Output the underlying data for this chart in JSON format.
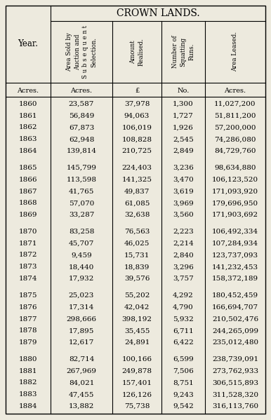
{
  "title": "CROWN LANDS.",
  "bg_color": "#edeade",
  "col_headers_line1": [
    "Area Sold by",
    "Amount",
    "Number of",
    "Area Leased."
  ],
  "col_headers_line2": [
    "Auction and",
    "Realised.",
    "Squatting",
    ""
  ],
  "col_headers_line3": [
    "Subsequent",
    "",
    "Runs.",
    ""
  ],
  "col_headers_line4": [
    "Selection.",
    "",
    "",
    ""
  ],
  "col_units": [
    "Acres.",
    "£",
    "No.",
    "Acres."
  ],
  "year_col_label": "Year.",
  "years": [
    "1860",
    "1861",
    "1862",
    "1863",
    "1864",
    "1865",
    "1866",
    "1867",
    "1868",
    "1869",
    "1870",
    "1871",
    "1872",
    "1873",
    "1874",
    "1875",
    "1876",
    "1877",
    "1878",
    "1879",
    "1880",
    "1881",
    "1882",
    "1883",
    "1884"
  ],
  "col1": [
    "23,587",
    "56,849",
    "67,873",
    "62,948",
    "139,814",
    "145,799",
    "113,598",
    "41,765",
    "57,070",
    "33,287",
    "83,258",
    "45,707",
    "9,459",
    "18,440",
    "17,932",
    "25,023",
    "17,314",
    "298,666",
    "17,895",
    "12,617",
    "82,714",
    "267,969",
    "84,021",
    "47,455",
    "13,882"
  ],
  "col2": [
    "37,978",
    "94,063",
    "106,019",
    "108,828",
    "210,725",
    "224,403",
    "141,325",
    "49,837",
    "61,085",
    "32,638",
    "76,563",
    "46,025",
    "15,731",
    "18,839",
    "39,576",
    "55,202",
    "42,042",
    "398,192",
    "35,455",
    "24,891",
    "100,166",
    "249,878",
    "157,401",
    "126,126",
    "75,738"
  ],
  "col3": [
    "1,300",
    "1,727",
    "1,926",
    "2,545",
    "2,849",
    "3,236",
    "3,470",
    "3,619",
    "3,969",
    "3,560",
    "2,223",
    "2,214",
    "2,840",
    "3,296",
    "3,757",
    "4,292",
    "4,790",
    "5,932",
    "6,711",
    "6,422",
    "6,599",
    "7,506",
    "8,751",
    "9,243",
    "9,542"
  ],
  "col4": [
    "11,027,200",
    "51,811,200",
    "57,200,000",
    "74,286,080",
    "84,729,760",
    "98,634,880",
    "106,123,520",
    "171,093,920",
    "179,696,950",
    "171,903,692",
    "106,492,334",
    "107,284,934",
    "123,737,093",
    "141,232,453",
    "158,372,189",
    "180,452,459",
    "166,694,707",
    "210,502,476",
    "244,265,099",
    "235,012,480",
    "238,739,091",
    "273,762,933",
    "306,515,893",
    "311,528,320",
    "316,113,760"
  ]
}
